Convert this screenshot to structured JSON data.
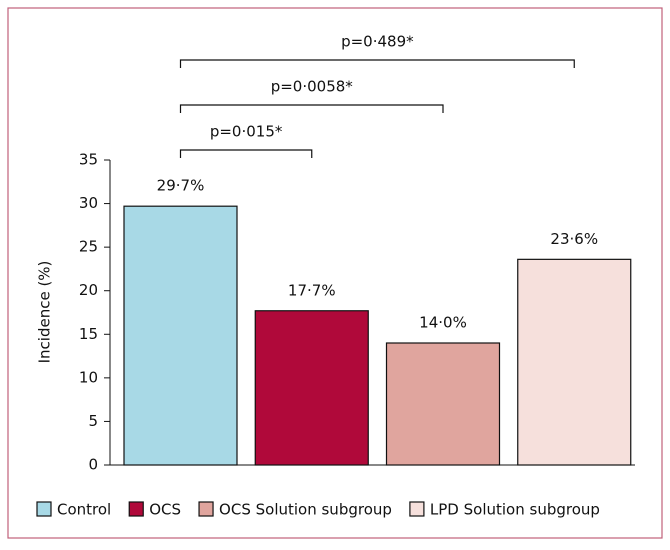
{
  "chart_data": {
    "type": "bar",
    "y_label": "Incidence (%)",
    "categories": [
      "Control",
      "OCS",
      "OCS Solution subgroup",
      "LPD Solution subgroup"
    ],
    "values": [
      29.7,
      17.7,
      14.0,
      23.6
    ],
    "value_labels": [
      "29·7%",
      "17·7%",
      "14·0%",
      "23·6%"
    ],
    "colors": [
      "#a8d9e6",
      "#b0093a",
      "#e0a59e",
      "#f6e0dc"
    ],
    "ylim": [
      0,
      35
    ],
    "yticks": [
      0,
      5,
      10,
      15,
      20,
      25,
      30,
      35
    ],
    "annotations": [
      {
        "text": "p=0·015*",
        "from": "Control",
        "to": "OCS"
      },
      {
        "text": "p=0·0058*",
        "from": "Control",
        "to": "OCS Solution subgroup"
      },
      {
        "text": "p=0·489*",
        "from": "Control",
        "to": "LPD Solution subgroup"
      }
    ]
  }
}
